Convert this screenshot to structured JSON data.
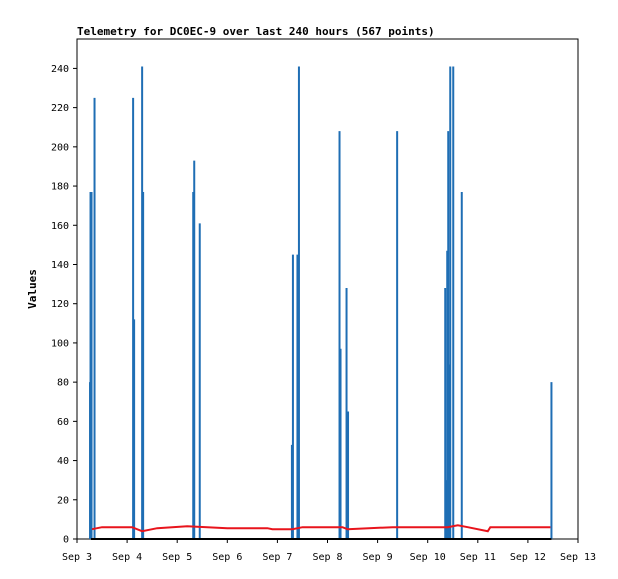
{
  "chart_data": {
    "type": "bar",
    "title": "Telemetry for DC0EC-9 over last 240 hours (567 points)",
    "xlabel": "",
    "ylabel": "Values",
    "xlim_days": [
      3,
      13
    ],
    "ylim": [
      0,
      255
    ],
    "grid": false,
    "legend": "none",
    "x_ticks": [
      {
        "day": 3,
        "label": "Sep 3"
      },
      {
        "day": 4,
        "label": "Sep 4"
      },
      {
        "day": 5,
        "label": "Sep 5"
      },
      {
        "day": 6,
        "label": "Sep 6"
      },
      {
        "day": 7,
        "label": "Sep 7"
      },
      {
        "day": 8,
        "label": "Sep 8"
      },
      {
        "day": 9,
        "label": "Sep 9"
      },
      {
        "day": 10,
        "label": "Sep 10"
      },
      {
        "day": 11,
        "label": "Sep 11"
      },
      {
        "day": 12,
        "label": "Sep 12"
      },
      {
        "day": 13,
        "label": "Sep 13"
      }
    ],
    "y_ticks": [
      0,
      20,
      40,
      60,
      80,
      100,
      120,
      140,
      160,
      180,
      200,
      220,
      240
    ],
    "colors": {
      "spikes": "#1f6eb4",
      "line": "#e8141c",
      "baseline": "#000000",
      "axis": "#000000"
    },
    "series": [
      {
        "type": "spikes",
        "color": "#1f6eb4",
        "points": [
          {
            "day": 3.26,
            "value": 80
          },
          {
            "day": 3.27,
            "value": 177
          },
          {
            "day": 3.29,
            "value": 177
          },
          {
            "day": 3.35,
            "value": 225
          },
          {
            "day": 4.12,
            "value": 225
          },
          {
            "day": 4.14,
            "value": 112
          },
          {
            "day": 4.3,
            "value": 241
          },
          {
            "day": 4.32,
            "value": 177
          },
          {
            "day": 5.32,
            "value": 177
          },
          {
            "day": 5.34,
            "value": 193
          },
          {
            "day": 5.45,
            "value": 161
          },
          {
            "day": 7.29,
            "value": 48
          },
          {
            "day": 7.31,
            "value": 145
          },
          {
            "day": 7.4,
            "value": 145
          },
          {
            "day": 7.43,
            "value": 241
          },
          {
            "day": 8.24,
            "value": 208
          },
          {
            "day": 8.26,
            "value": 97
          },
          {
            "day": 8.38,
            "value": 128
          },
          {
            "day": 8.41,
            "value": 65
          },
          {
            "day": 9.39,
            "value": 208
          },
          {
            "day": 10.35,
            "value": 128
          },
          {
            "day": 10.37,
            "value": 30
          },
          {
            "day": 10.39,
            "value": 147
          },
          {
            "day": 10.41,
            "value": 208
          },
          {
            "day": 10.43,
            "value": 89
          },
          {
            "day": 10.45,
            "value": 241
          },
          {
            "day": 10.51,
            "value": 241
          },
          {
            "day": 10.68,
            "value": 177
          },
          {
            "day": 12.47,
            "value": 80
          }
        ]
      },
      {
        "type": "line",
        "color": "#e8141c",
        "points": [
          {
            "day": 3.3,
            "value": 5
          },
          {
            "day": 3.5,
            "value": 6
          },
          {
            "day": 4.1,
            "value": 6
          },
          {
            "day": 4.3,
            "value": 4
          },
          {
            "day": 4.6,
            "value": 5.5
          },
          {
            "day": 5.2,
            "value": 6.5
          },
          {
            "day": 5.6,
            "value": 6
          },
          {
            "day": 6.0,
            "value": 5.5
          },
          {
            "day": 6.8,
            "value": 5.5
          },
          {
            "day": 6.9,
            "value": 5
          },
          {
            "day": 7.3,
            "value": 5
          },
          {
            "day": 7.5,
            "value": 6
          },
          {
            "day": 8.3,
            "value": 6
          },
          {
            "day": 8.4,
            "value": 5
          },
          {
            "day": 9.3,
            "value": 6
          },
          {
            "day": 9.5,
            "value": 6
          },
          {
            "day": 10.4,
            "value": 6
          },
          {
            "day": 10.6,
            "value": 7
          },
          {
            "day": 10.8,
            "value": 6
          },
          {
            "day": 11.2,
            "value": 4
          },
          {
            "day": 11.25,
            "value": 6
          },
          {
            "day": 12.45,
            "value": 6
          }
        ]
      },
      {
        "type": "baseline",
        "color": "#000000",
        "points": [
          {
            "day": 3.28,
            "value": 0
          },
          {
            "day": 12.47,
            "value": 0
          }
        ]
      }
    ]
  }
}
